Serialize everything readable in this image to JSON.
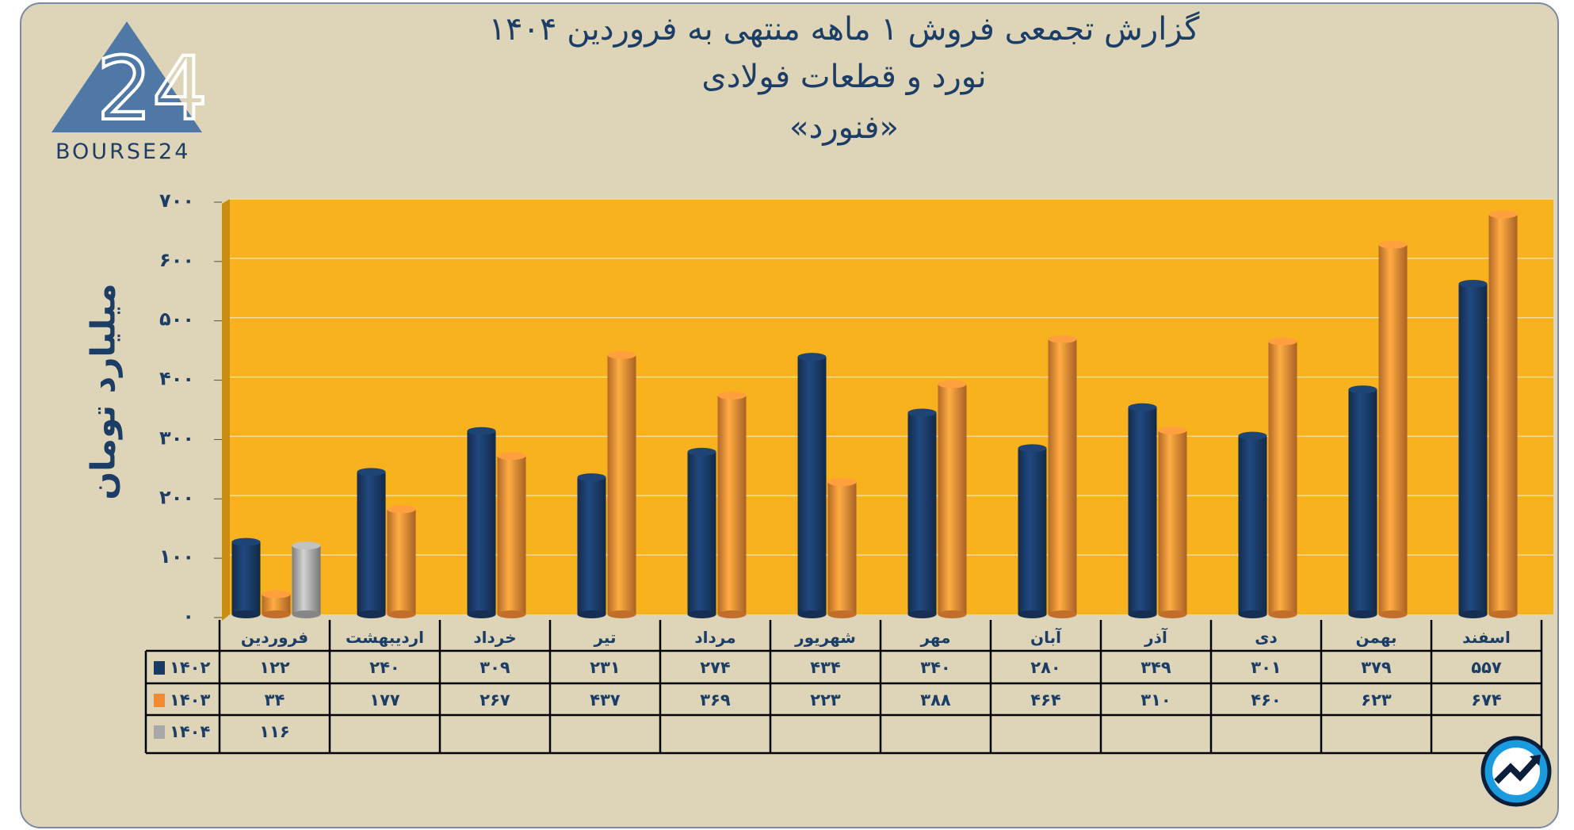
{
  "title": {
    "line1": "گزارش تجمعی فروش ۱ ماهه منتهی به فروردین ۱۴۰۴",
    "line2": "نورد و قطعات فولادی",
    "line3": "«فنورد»"
  },
  "logo": {
    "text": "BOURSE24"
  },
  "chart_data": {
    "type": "bar",
    "style": "3d-cylinder",
    "ylabel": "میلیارد تومان",
    "ylim": [
      0,
      700
    ],
    "yticks": [
      0,
      100,
      200,
      300,
      400,
      500,
      600,
      700
    ],
    "grid": true,
    "legend": "data-table-below",
    "categories": [
      "فروردین",
      "اردیبهشت",
      "خرداد",
      "تیر",
      "مرداد",
      "شهریور",
      "مهر",
      "آبان",
      "آذر",
      "دی",
      "بهمن",
      "اسفند"
    ],
    "series": [
      {
        "name": "۱۴۰۲",
        "color": "#1a3a66",
        "values": [
          122,
          240,
          309,
          231,
          274,
          434,
          340,
          280,
          349,
          301,
          379,
          557
        ]
      },
      {
        "name": "۱۴۰۳",
        "color": "#f08a35",
        "values": [
          34,
          177,
          267,
          437,
          369,
          223,
          388,
          464,
          310,
          460,
          623,
          674
        ]
      },
      {
        "name": "۱۴۰۴",
        "color": "#a8a8a8",
        "values": [
          116,
          null,
          null,
          null,
          null,
          null,
          null,
          null,
          null,
          null,
          null,
          null
        ]
      }
    ]
  },
  "colors": {
    "plot_bg": "#f7b21e",
    "wall": "#c98d10",
    "text": "#1c3d66",
    "background": "#ded5b8"
  }
}
